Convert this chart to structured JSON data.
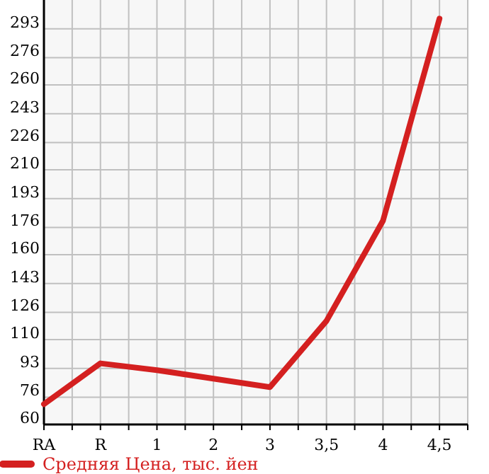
{
  "chart_data": {
    "type": "line",
    "categories": [
      "RA",
      "R",
      "1",
      "2",
      "3",
      "3,5",
      "4",
      "4,5"
    ],
    "series": [
      {
        "name": "Средняя Цена, тыс. йен",
        "color": "#d42020",
        "values": [
          72,
          96,
          92,
          87,
          82,
          121,
          180,
          299
        ]
      }
    ],
    "ylim": [
      60,
      310
    ],
    "yticks": [
      60,
      76,
      93,
      110,
      126,
      143,
      160,
      176,
      193,
      210,
      226,
      243,
      260,
      276,
      293
    ],
    "grid": true,
    "legend": "bottom",
    "marker": "none",
    "line_style": "solid"
  }
}
